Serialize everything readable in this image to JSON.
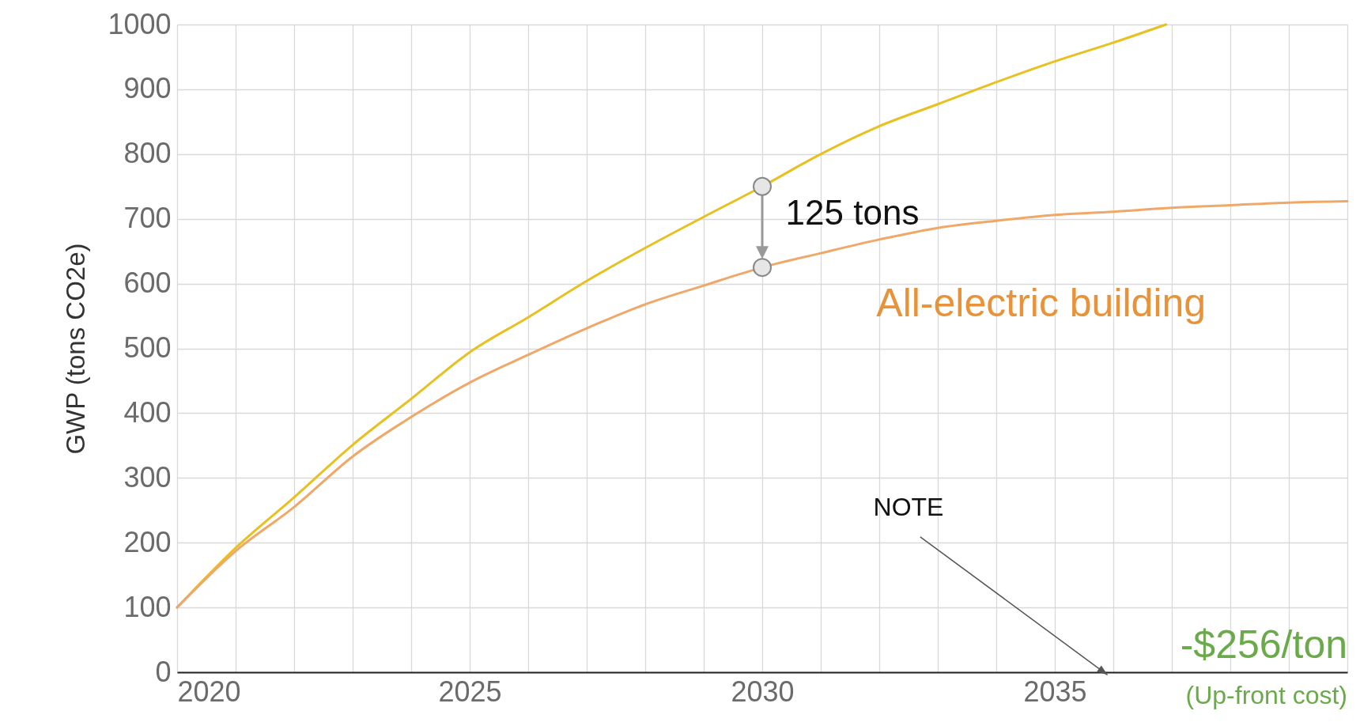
{
  "chart_data": {
    "type": "line",
    "ylabel": "GWP (tons CO2e)",
    "xlim": [
      2020,
      2040
    ],
    "ylim": [
      0,
      1000
    ],
    "xticks": [
      2020,
      {
        "value": 2021,
        "label": null
      },
      {
        "value": 2022,
        "label": null
      },
      {
        "value": 2023,
        "label": null
      },
      {
        "value": 2024,
        "label": null
      },
      2025,
      {
        "value": 2026,
        "label": null
      },
      {
        "value": 2027,
        "label": null
      },
      {
        "value": 2028,
        "label": null
      },
      {
        "value": 2029,
        "label": null
      },
      2030,
      {
        "value": 2031,
        "label": null
      },
      {
        "value": 2032,
        "label": null
      },
      {
        "value": 2033,
        "label": null
      },
      {
        "value": 2034,
        "label": null
      },
      2035,
      {
        "value": 2036,
        "label": null
      },
      {
        "value": 2037,
        "label": null
      },
      {
        "value": 2038,
        "label": null
      },
      {
        "value": 2039,
        "label": null
      },
      {
        "value": 2040,
        "label": null
      }
    ],
    "yticks": [
      0,
      100,
      200,
      300,
      400,
      500,
      600,
      700,
      800,
      900,
      1000
    ],
    "grid": true,
    "series": [
      {
        "color": "#e8c020",
        "x": [
          2020,
          2021,
          2022,
          2023,
          2024,
          2025,
          2026,
          2027,
          2028,
          2029,
          2030,
          2031,
          2032,
          2033,
          2034,
          2035,
          2036,
          2036.9
        ],
        "values": [
          100,
          192,
          270,
          351,
          422,
          494,
          548,
          604,
          655,
          703,
          750,
          800,
          843,
          877,
          911,
          943,
          972,
          1000
        ]
      },
      {
        "name": "All-electric building",
        "color": "#f0a868",
        "x": [
          2020,
          2021,
          2022,
          2023,
          2024,
          2025,
          2026,
          2027,
          2028,
          2029,
          2030,
          2031,
          2032,
          2033,
          2034,
          2035,
          2036,
          2037,
          2038,
          2039,
          2040
        ],
        "values": [
          100,
          187,
          255,
          333,
          394,
          447,
          490,
          531,
          568,
          597,
          625,
          647,
          668,
          686,
          697,
          706,
          711,
          717,
          721,
          725,
          727
        ]
      }
    ],
    "annotations": [
      {
        "text": "125 tons",
        "x": 2030,
        "y": 750
      },
      "NOTE",
      "-$256/ton",
      "(Up-front cost)"
    ]
  }
}
